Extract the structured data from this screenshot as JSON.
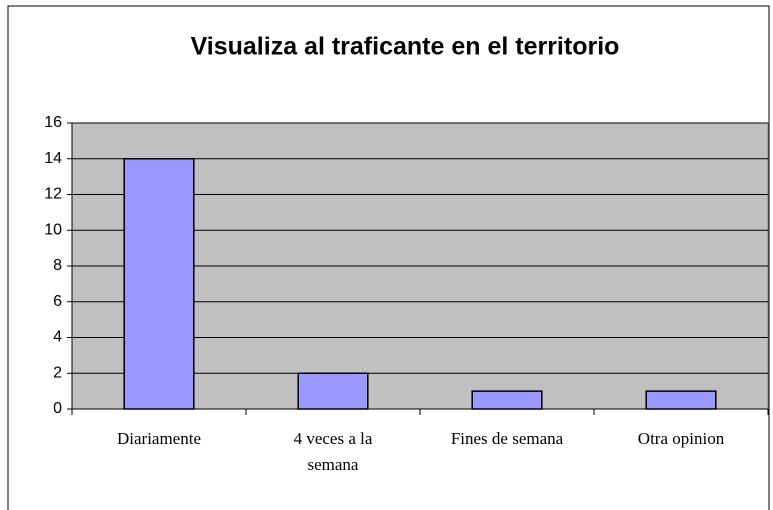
{
  "chart_data": {
    "type": "bar",
    "title": "Visualiza al traficante en el territorio",
    "categories": [
      "Diariamente",
      "4 veces a la semana",
      "Fines de semana",
      "Otra opinion"
    ],
    "values": [
      14,
      2,
      1,
      1
    ],
    "color": "#9999ff",
    "plot_background": "#c0c0c0",
    "ylim": [
      0,
      16
    ],
    "yticks": [
      0,
      2,
      4,
      6,
      8,
      10,
      12,
      14,
      16
    ],
    "grid": true
  }
}
